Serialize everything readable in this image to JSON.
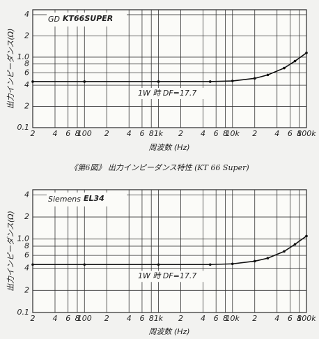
{
  "chart_data": [
    {
      "type": "line",
      "title_prefix": "GD",
      "title": "KT66SUPER",
      "annotation": "1W 時 DF=17.7",
      "xlabel": "周波数 (Hz)",
      "ylabel": "出力インピーダンス(Ω)",
      "caption": "《第6図》 出力インピーダンス特性 (KT 66 Super)",
      "x": [
        20,
        100,
        1000,
        5000,
        10000,
        20000,
        30000,
        50000,
        70000,
        100000
      ],
      "series": [
        {
          "name": "KT66SUPER",
          "color": "#111111",
          "values": [
            0.45,
            0.45,
            0.45,
            0.45,
            0.46,
            0.5,
            0.56,
            0.7,
            0.88,
            1.15
          ]
        }
      ],
      "log_x": true,
      "log_y": true,
      "grid": true,
      "xlim": [
        20,
        100000
      ],
      "ylim": [
        0.1,
        4.7
      ],
      "xticks": [
        {
          "value": 20,
          "label": "2"
        },
        {
          "value": 40,
          "label": "4"
        },
        {
          "value": 60,
          "label": "6"
        },
        {
          "value": 80,
          "label": "8"
        },
        100,
        {
          "value": 200,
          "label": "2"
        },
        {
          "value": 400,
          "label": "4"
        },
        {
          "value": 600,
          "label": "6"
        },
        {
          "value": 800,
          "label": "8"
        },
        {
          "value": 1000,
          "label": "1k"
        },
        {
          "value": 2000,
          "label": "2"
        },
        {
          "value": 4000,
          "label": "4"
        },
        {
          "value": 6000,
          "label": "6"
        },
        {
          "value": 8000,
          "label": "8"
        },
        {
          "value": 10000,
          "label": "10k"
        },
        {
          "value": 20000,
          "label": "2"
        },
        {
          "value": 40000,
          "label": "4"
        },
        {
          "value": 60000,
          "label": "6"
        },
        {
          "value": 80000,
          "label": "8"
        },
        {
          "value": 100000,
          "label": "100k"
        }
      ],
      "yticks": [
        4,
        2,
        {
          "value": 1,
          "label": "1.0"
        },
        {
          "value": 0.8,
          "label": "8"
        },
        {
          "value": 0.6,
          "label": "6"
        },
        {
          "value": 0.4,
          "label": "4"
        },
        {
          "value": 0.2,
          "label": "2"
        },
        0.1
      ]
    },
    {
      "type": "line",
      "title_prefix": "Siemens",
      "title": "EL34",
      "annotation": "1W 時 DF=17.7",
      "xlabel": "周波数 (Hz)",
      "ylabel": "出力インピーダンス(Ω)",
      "x": [
        20,
        100,
        1000,
        5000,
        10000,
        20000,
        30000,
        50000,
        70000,
        100000
      ],
      "series": [
        {
          "name": "EL34",
          "color": "#111111",
          "values": [
            0.45,
            0.45,
            0.45,
            0.45,
            0.46,
            0.5,
            0.55,
            0.68,
            0.85,
            1.1
          ]
        }
      ],
      "log_x": true,
      "log_y": true,
      "grid": true,
      "xlim": [
        20,
        100000
      ],
      "ylim": [
        0.1,
        4.7
      ],
      "xticks": [
        {
          "value": 20,
          "label": "2"
        },
        {
          "value": 40,
          "label": "4"
        },
        {
          "value": 60,
          "label": "6"
        },
        {
          "value": 80,
          "label": "8"
        },
        100,
        {
          "value": 200,
          "label": "2"
        },
        {
          "value": 400,
          "label": "4"
        },
        {
          "value": 600,
          "label": "6"
        },
        {
          "value": 800,
          "label": "8"
        },
        {
          "value": 1000,
          "label": "1k"
        },
        {
          "value": 2000,
          "label": "2"
        },
        {
          "value": 4000,
          "label": "4"
        },
        {
          "value": 6000,
          "label": "6"
        },
        {
          "value": 8000,
          "label": "8"
        },
        {
          "value": 10000,
          "label": "10k"
        },
        {
          "value": 20000,
          "label": "2"
        },
        {
          "value": 40000,
          "label": "4"
        },
        {
          "value": 60000,
          "label": "6"
        },
        {
          "value": 80000,
          "label": "8"
        },
        {
          "value": 100000,
          "label": "100k"
        }
      ],
      "yticks": [
        4,
        2,
        {
          "value": 1,
          "label": "1.0"
        },
        {
          "value": 0.8,
          "label": "8"
        },
        {
          "value": 0.6,
          "label": "6"
        },
        {
          "value": 0.4,
          "label": "4"
        },
        {
          "value": 0.2,
          "label": "2"
        },
        0.1
      ]
    }
  ]
}
